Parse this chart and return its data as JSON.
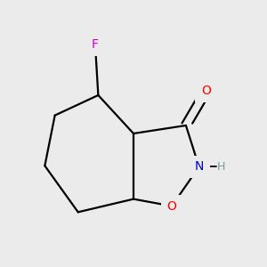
{
  "bg_color": "#ebebeb",
  "bond_color": "#000000",
  "bond_lw": 1.6,
  "atom_colors": {
    "O": "#ff0000",
    "N": "#0000cc",
    "F": "#cc00cc",
    "C": "#000000"
  },
  "font_size_atom": 10,
  "font_size_H": 9,
  "H_color": "#7a9a9a",
  "figsize": [
    3.0,
    3.0
  ],
  "dpi": 100
}
